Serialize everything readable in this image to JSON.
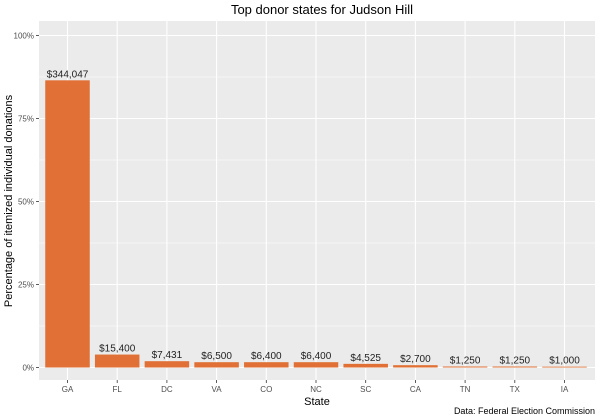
{
  "chart_data": {
    "type": "bar",
    "title": "Top donor states for Judson Hill",
    "xlabel": "State",
    "ylabel": "Percentage of itemized individual donations",
    "caption": "Data: Federal Election Commission",
    "categories": [
      "GA",
      "FL",
      "DC",
      "VA",
      "CO",
      "NC",
      "SC",
      "CA",
      "TN",
      "TX",
      "IA"
    ],
    "values": [
      86.5,
      3.9,
      1.9,
      1.6,
      1.6,
      1.6,
      1.1,
      0.7,
      0.3,
      0.3,
      0.25
    ],
    "data_labels": [
      "$344,047",
      "$15,400",
      "$7,431",
      "$6,500",
      "$6,400",
      "$6,400",
      "$4,525",
      "$2,700",
      "$1,250",
      "$1,250",
      "$1,000"
    ],
    "ylim": [
      0,
      100
    ],
    "yticks": [
      0,
      25,
      50,
      75,
      100
    ],
    "ytick_labels": [
      "0%",
      "25%",
      "50%",
      "75%",
      "100%"
    ],
    "grid": true,
    "bar_color": "#e07035",
    "panel_color": "#ebebeb",
    "grid_color": "#ffffff"
  }
}
